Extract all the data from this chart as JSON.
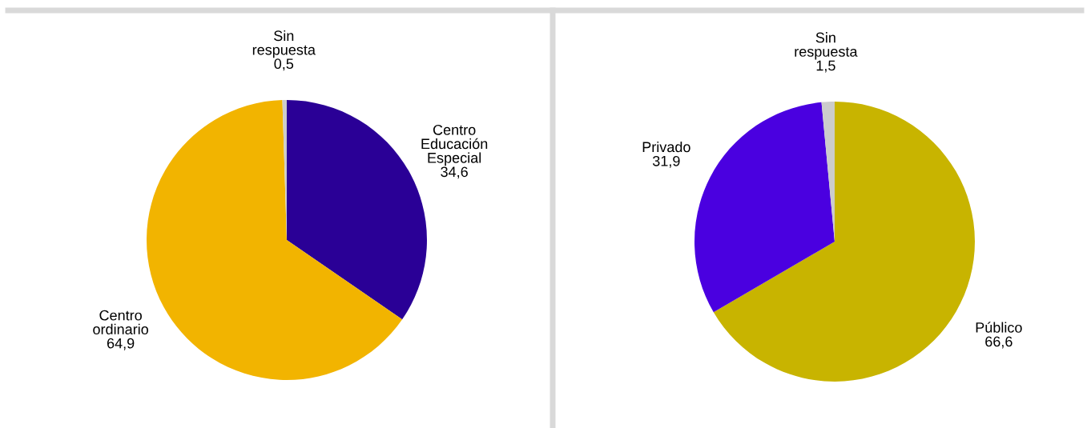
{
  "chart_data": [
    {
      "type": "pie",
      "categories": [
        "Centro\nEducación\nEspecial",
        "Centro\nordinario",
        "Sin\nrespuesta"
      ],
      "values": [
        34.6,
        64.9,
        0.5
      ],
      "colors": [
        "#2a0096",
        "#f2b400",
        "#cccccc"
      ],
      "value_labels": [
        "34,6",
        "64,9",
        "0,5"
      ]
    },
    {
      "type": "pie",
      "categories": [
        "Público",
        "Privado",
        "Sin\nrespuesta"
      ],
      "values": [
        66.6,
        31.9,
        1.5
      ],
      "colors": [
        "#c8b400",
        "#4a00e0",
        "#cccccc"
      ],
      "value_labels": [
        "66,6",
        "31,9",
        "1,5"
      ]
    }
  ]
}
